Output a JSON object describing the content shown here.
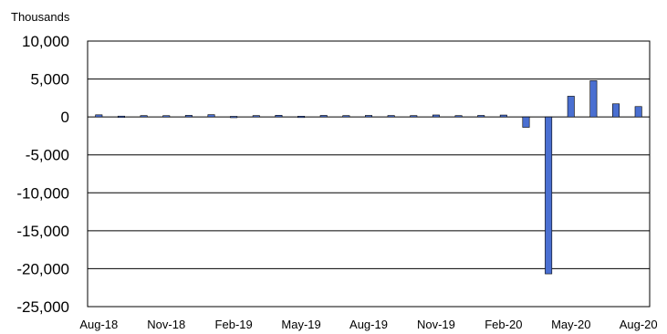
{
  "chart_data": {
    "type": "bar",
    "unit_label": "Thousands",
    "categories": [
      "Aug-18",
      "Sep-18",
      "Oct-18",
      "Nov-18",
      "Dec-18",
      "Jan-19",
      "Feb-19",
      "Mar-19",
      "Apr-19",
      "May-19",
      "Jun-19",
      "Jul-19",
      "Aug-19",
      "Sep-19",
      "Oct-19",
      "Nov-19",
      "Dec-19",
      "Jan-20",
      "Feb-20",
      "Mar-20",
      "Apr-20",
      "May-20",
      "Jun-20",
      "Jul-20",
      "Aug-20"
    ],
    "x_tick_labels": [
      "Aug-18",
      "Nov-18",
      "Feb-19",
      "May-19",
      "Aug-19",
      "Nov-19",
      "Feb-20",
      "May-20",
      "Aug-20"
    ],
    "values": [
      280,
      110,
      180,
      170,
      210,
      300,
      80,
      180,
      220,
      100,
      200,
      180,
      200,
      190,
      180,
      260,
      180,
      200,
      250,
      -1370,
      -20680,
      2730,
      4780,
      1730,
      1370
    ],
    "y_ticks": [
      "10,000",
      "5,000",
      "0",
      "-5,000",
      "-10,000",
      "-15,000",
      "-20,000",
      "-25,000"
    ],
    "ylim": [
      -25000,
      10000
    ],
    "grid": true,
    "legend": "none",
    "colors": {
      "bar": "#4a6fd1",
      "bar_stroke": "#000000",
      "grid": "#000000"
    }
  }
}
